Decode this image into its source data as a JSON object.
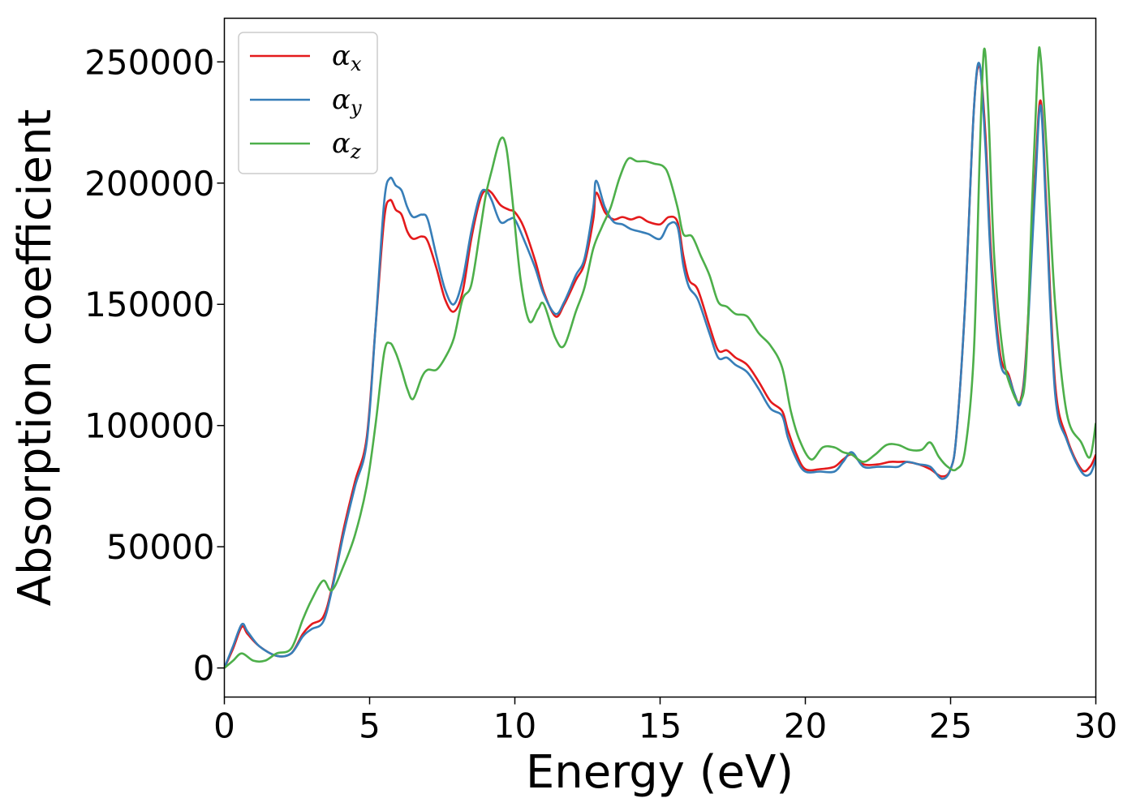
{
  "chart_data": {
    "type": "line",
    "xlabel": "Energy (eV)",
    "ylabel": "Absorption coefficient",
    "xlim": [
      0,
      30
    ],
    "ylim": [
      -12000,
      268000
    ],
    "xticks": [
      0,
      5,
      10,
      15,
      20,
      25,
      30
    ],
    "yticks": [
      0,
      50000,
      100000,
      150000,
      200000,
      250000
    ],
    "grid": false,
    "legend_position": "top-left",
    "series": [
      {
        "name": "αx",
        "symbol": "α",
        "subscript": "x",
        "color": "#e41a1c",
        "x": [
          0,
          0.3,
          0.6,
          0.8,
          1.2,
          1.8,
          2.3,
          2.7,
          3.0,
          3.4,
          3.7,
          4.1,
          4.5,
          4.9,
          5.2,
          5.5,
          5.7,
          5.9,
          6.1,
          6.3,
          6.5,
          6.8,
          7.0,
          7.3,
          7.6,
          7.9,
          8.2,
          8.5,
          8.8,
          9.0,
          9.2,
          9.5,
          9.8,
          10.0,
          10.3,
          10.7,
          11.0,
          11.4,
          11.7,
          12.1,
          12.4,
          12.7,
          12.8,
          13.1,
          13.4,
          13.7,
          14.0,
          14.3,
          14.6,
          15.0,
          15.3,
          15.6,
          15.8,
          16.0,
          16.3,
          16.7,
          17.0,
          17.3,
          17.6,
          18.0,
          18.4,
          18.8,
          19.2,
          19.4,
          19.7,
          20.0,
          20.5,
          21.0,
          21.3,
          21.6,
          22.0,
          22.5,
          22.9,
          23.2,
          23.5,
          23.9,
          24.3,
          24.7,
          25.0,
          25.2,
          25.5,
          25.8,
          26.0,
          26.2,
          26.4,
          26.7,
          27.0,
          27.2,
          27.4,
          27.6,
          27.9,
          28.1,
          28.3,
          28.6,
          29.0,
          29.5,
          29.8,
          30.0
        ],
        "values": [
          0,
          8000,
          17000,
          14000,
          9000,
          5000,
          6000,
          14000,
          18000,
          21000,
          33000,
          57000,
          77000,
          95000,
          140000,
          185000,
          193000,
          189000,
          187000,
          180000,
          177000,
          178000,
          176000,
          165000,
          152000,
          147000,
          155000,
          177000,
          193000,
          197000,
          196000,
          191000,
          189000,
          188000,
          182000,
          168000,
          155000,
          145000,
          150000,
          160000,
          167000,
          185000,
          196000,
          188000,
          185000,
          186000,
          185000,
          186000,
          184000,
          183000,
          186000,
          184000,
          170000,
          160000,
          156000,
          141000,
          131000,
          131000,
          128000,
          125000,
          118000,
          110000,
          106000,
          98000,
          88000,
          82000,
          82000,
          83000,
          86000,
          88000,
          84000,
          84000,
          85000,
          85000,
          85000,
          84000,
          82000,
          79000,
          82000,
          96000,
          150000,
          230000,
          248000,
          220000,
          170000,
          130000,
          121000,
          113000,
          110000,
          130000,
          200000,
          234000,
          190000,
          117000,
          95000,
          82000,
          83000,
          88000
        ]
      },
      {
        "name": "αy",
        "symbol": "α",
        "subscript": "y",
        "color": "#377eb8",
        "x": [
          0,
          0.3,
          0.6,
          0.8,
          1.2,
          1.8,
          2.3,
          2.7,
          3.0,
          3.4,
          3.7,
          4.1,
          4.5,
          4.9,
          5.2,
          5.5,
          5.7,
          5.9,
          6.1,
          6.3,
          6.5,
          6.8,
          7.0,
          7.3,
          7.6,
          7.9,
          8.2,
          8.5,
          8.8,
          9.0,
          9.2,
          9.5,
          9.8,
          10.0,
          10.3,
          10.7,
          11.0,
          11.4,
          11.7,
          12.1,
          12.4,
          12.7,
          12.8,
          13.1,
          13.4,
          13.7,
          14.0,
          14.3,
          14.6,
          15.0,
          15.3,
          15.6,
          15.8,
          16.0,
          16.3,
          16.7,
          17.0,
          17.3,
          17.6,
          18.0,
          18.4,
          18.8,
          19.2,
          19.4,
          19.7,
          20.0,
          20.5,
          21.0,
          21.3,
          21.6,
          22.0,
          22.5,
          22.9,
          23.2,
          23.5,
          23.9,
          24.3,
          24.7,
          25.0,
          25.2,
          25.5,
          25.8,
          26.0,
          26.2,
          26.4,
          26.7,
          27.0,
          27.2,
          27.4,
          27.6,
          27.9,
          28.1,
          28.3,
          28.6,
          29.0,
          29.5,
          29.8,
          30.0
        ],
        "values": [
          0,
          9000,
          18000,
          15000,
          9000,
          5000,
          6000,
          13000,
          16000,
          19000,
          32000,
          55000,
          75000,
          93000,
          140000,
          192000,
          202000,
          199000,
          197000,
          190000,
          186000,
          187000,
          185000,
          170000,
          156000,
          150000,
          160000,
          180000,
          195000,
          197000,
          193000,
          184000,
          185000,
          185000,
          177000,
          165000,
          154000,
          146000,
          151000,
          162000,
          169000,
          190000,
          201000,
          190000,
          184000,
          183000,
          181000,
          180000,
          179000,
          177000,
          183000,
          182000,
          166000,
          157000,
          152000,
          138000,
          128000,
          128000,
          125000,
          122000,
          115000,
          107000,
          104000,
          95000,
          86000,
          81000,
          81000,
          81000,
          85000,
          89000,
          83000,
          83000,
          83000,
          83000,
          85000,
          84000,
          83000,
          78000,
          82000,
          96000,
          150000,
          230000,
          249000,
          215000,
          165000,
          127000,
          120000,
          113000,
          109000,
          128000,
          195000,
          232000,
          185000,
          113000,
          94000,
          81000,
          80000,
          86000
        ]
      },
      {
        "name": "αz",
        "symbol": "α",
        "subscript": "z",
        "color": "#4daf4a",
        "x": [
          0,
          0.3,
          0.6,
          1.0,
          1.4,
          1.8,
          2.3,
          2.7,
          3.0,
          3.4,
          3.7,
          4.1,
          4.5,
          4.9,
          5.2,
          5.5,
          5.7,
          5.9,
          6.1,
          6.3,
          6.5,
          6.8,
          7.0,
          7.3,
          7.6,
          7.9,
          8.2,
          8.5,
          8.8,
          9.0,
          9.2,
          9.5,
          9.7,
          9.9,
          10.2,
          10.5,
          10.8,
          11.0,
          11.4,
          11.7,
          12.1,
          12.4,
          12.7,
          13.0,
          13.3,
          13.6,
          13.9,
          14.2,
          14.5,
          14.8,
          15.1,
          15.3,
          15.6,
          15.8,
          16.1,
          16.4,
          16.7,
          17.0,
          17.3,
          17.6,
          18.0,
          18.4,
          18.8,
          19.2,
          19.5,
          19.8,
          20.2,
          20.6,
          21.0,
          21.3,
          21.6,
          22.0,
          22.4,
          22.8,
          23.2,
          23.6,
          24.0,
          24.3,
          24.6,
          24.9,
          25.2,
          25.5,
          25.8,
          26.0,
          26.15,
          26.3,
          26.5,
          26.8,
          27.1,
          27.4,
          27.6,
          27.8,
          28.0,
          28.1,
          28.3,
          28.6,
          29.0,
          29.5,
          29.8,
          30.0
        ],
        "values": [
          0,
          3000,
          6000,
          3000,
          3000,
          6000,
          8000,
          20000,
          28000,
          36000,
          32000,
          42000,
          55000,
          75000,
          100000,
          130000,
          134000,
          130000,
          123000,
          115000,
          111000,
          120000,
          123000,
          123000,
          128000,
          136000,
          152000,
          158000,
          180000,
          195000,
          205000,
          218000,
          215000,
          195000,
          160000,
          143000,
          148000,
          150000,
          136000,
          133000,
          147000,
          157000,
          173000,
          182000,
          190000,
          202000,
          210000,
          209000,
          209000,
          208000,
          207000,
          203000,
          190000,
          179000,
          178000,
          170000,
          162000,
          151000,
          149000,
          146000,
          145000,
          138000,
          133000,
          124000,
          106000,
          94000,
          86000,
          91000,
          91000,
          89000,
          88000,
          85000,
          88000,
          92000,
          92000,
          90000,
          90000,
          93000,
          87000,
          83000,
          82000,
          90000,
          130000,
          210000,
          255000,
          230000,
          170000,
          130000,
          115000,
          110000,
          125000,
          190000,
          248000,
          252000,
          215000,
          150000,
          105000,
          93000,
          87000,
          101000
        ]
      }
    ]
  }
}
